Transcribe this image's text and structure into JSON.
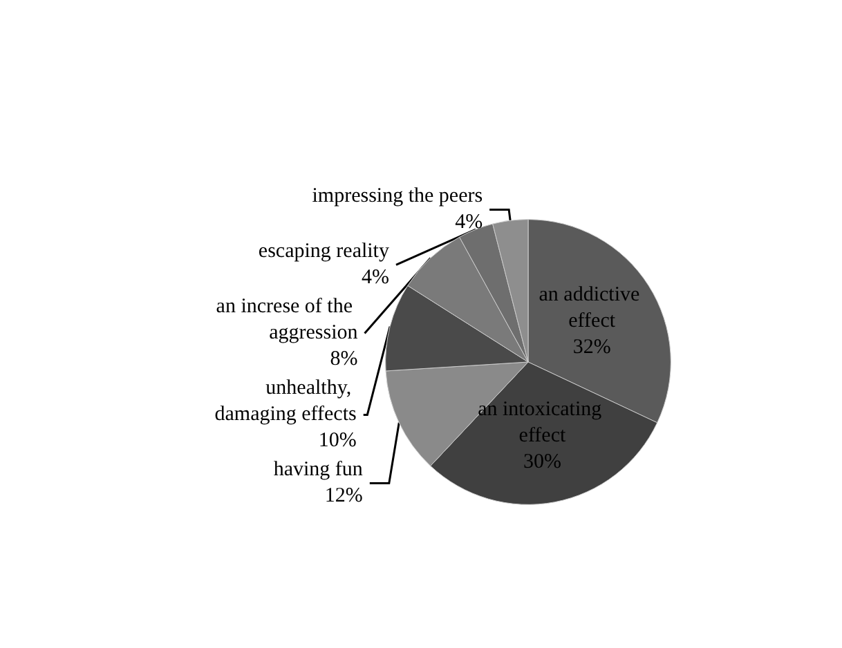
{
  "chart_data": {
    "type": "pie",
    "categories": [
      "an addictive effect",
      "an intoxicating effect",
      "having fun",
      "unhealthy, damaging effects",
      "an increse of the aggression",
      "escaping reality",
      "impressing the peers"
    ],
    "values": [
      32,
      30,
      12,
      10,
      8,
      4,
      4
    ],
    "colors": [
      "#5a5a5a",
      "#404040",
      "#8a8a8a",
      "#4a4a4a",
      "#7a7a7a",
      "#6e6e6e",
      "#8e8e8e"
    ],
    "value_labels": [
      "32%",
      "30%",
      "12%",
      "10%",
      "8%",
      "4%",
      "4%"
    ],
    "legend": false
  }
}
